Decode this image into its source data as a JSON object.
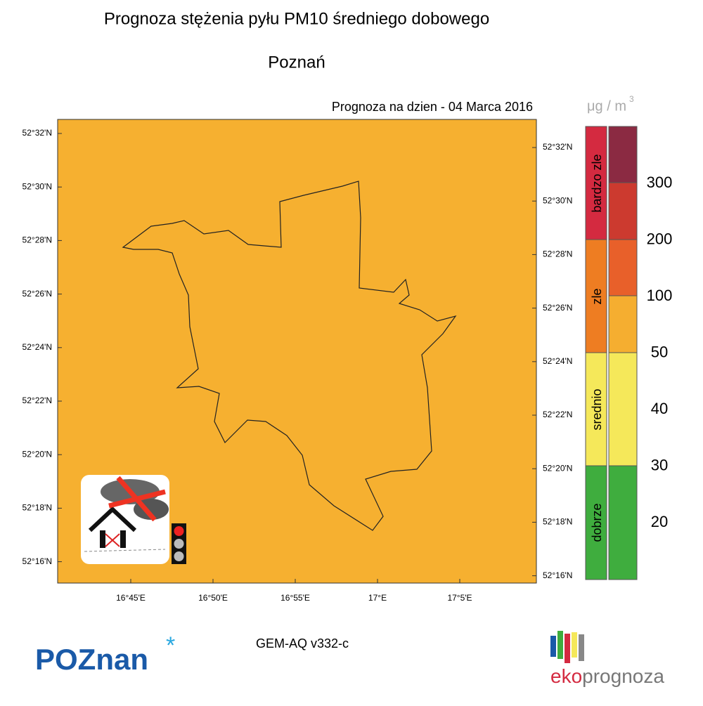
{
  "header": {
    "title": "Prognoza stężenia pyłu PM10 średniego dobowego",
    "city": "Poznań",
    "date_label": "Prognoza na dzien -  04 Marca 2016"
  },
  "map": {
    "left_ticks": [
      "52°32'N",
      "52°30'N",
      "52°28'N",
      "52°26'N",
      "52°24'N",
      "52°22'N",
      "52°20'N",
      "52°18'N",
      "52°16'N"
    ],
    "right_ticks": [
      "52°32'N",
      "52°30'N",
      "52°28'N",
      "52°26'N",
      "52°24'N",
      "52°22'N",
      "52°20'N",
      "52°18'N",
      "52°16'N"
    ],
    "bottom_ticks": [
      "16°45'E",
      "16°50'E",
      "16°55'E",
      "17°E",
      "17°5'E"
    ]
  },
  "legend": {
    "unit": "μg / m",
    "unit_exponent": "3",
    "categories": [
      "bardzo zle",
      "zle",
      "srednio",
      "dobrze"
    ],
    "levels": [
      300,
      200,
      100,
      50,
      40,
      30,
      20
    ]
  },
  "footer": {
    "model": "GEM-AQ v332-c",
    "logo_left": "POZnan",
    "logo_right_a": "eko",
    "logo_right_b": "prognoza"
  }
}
